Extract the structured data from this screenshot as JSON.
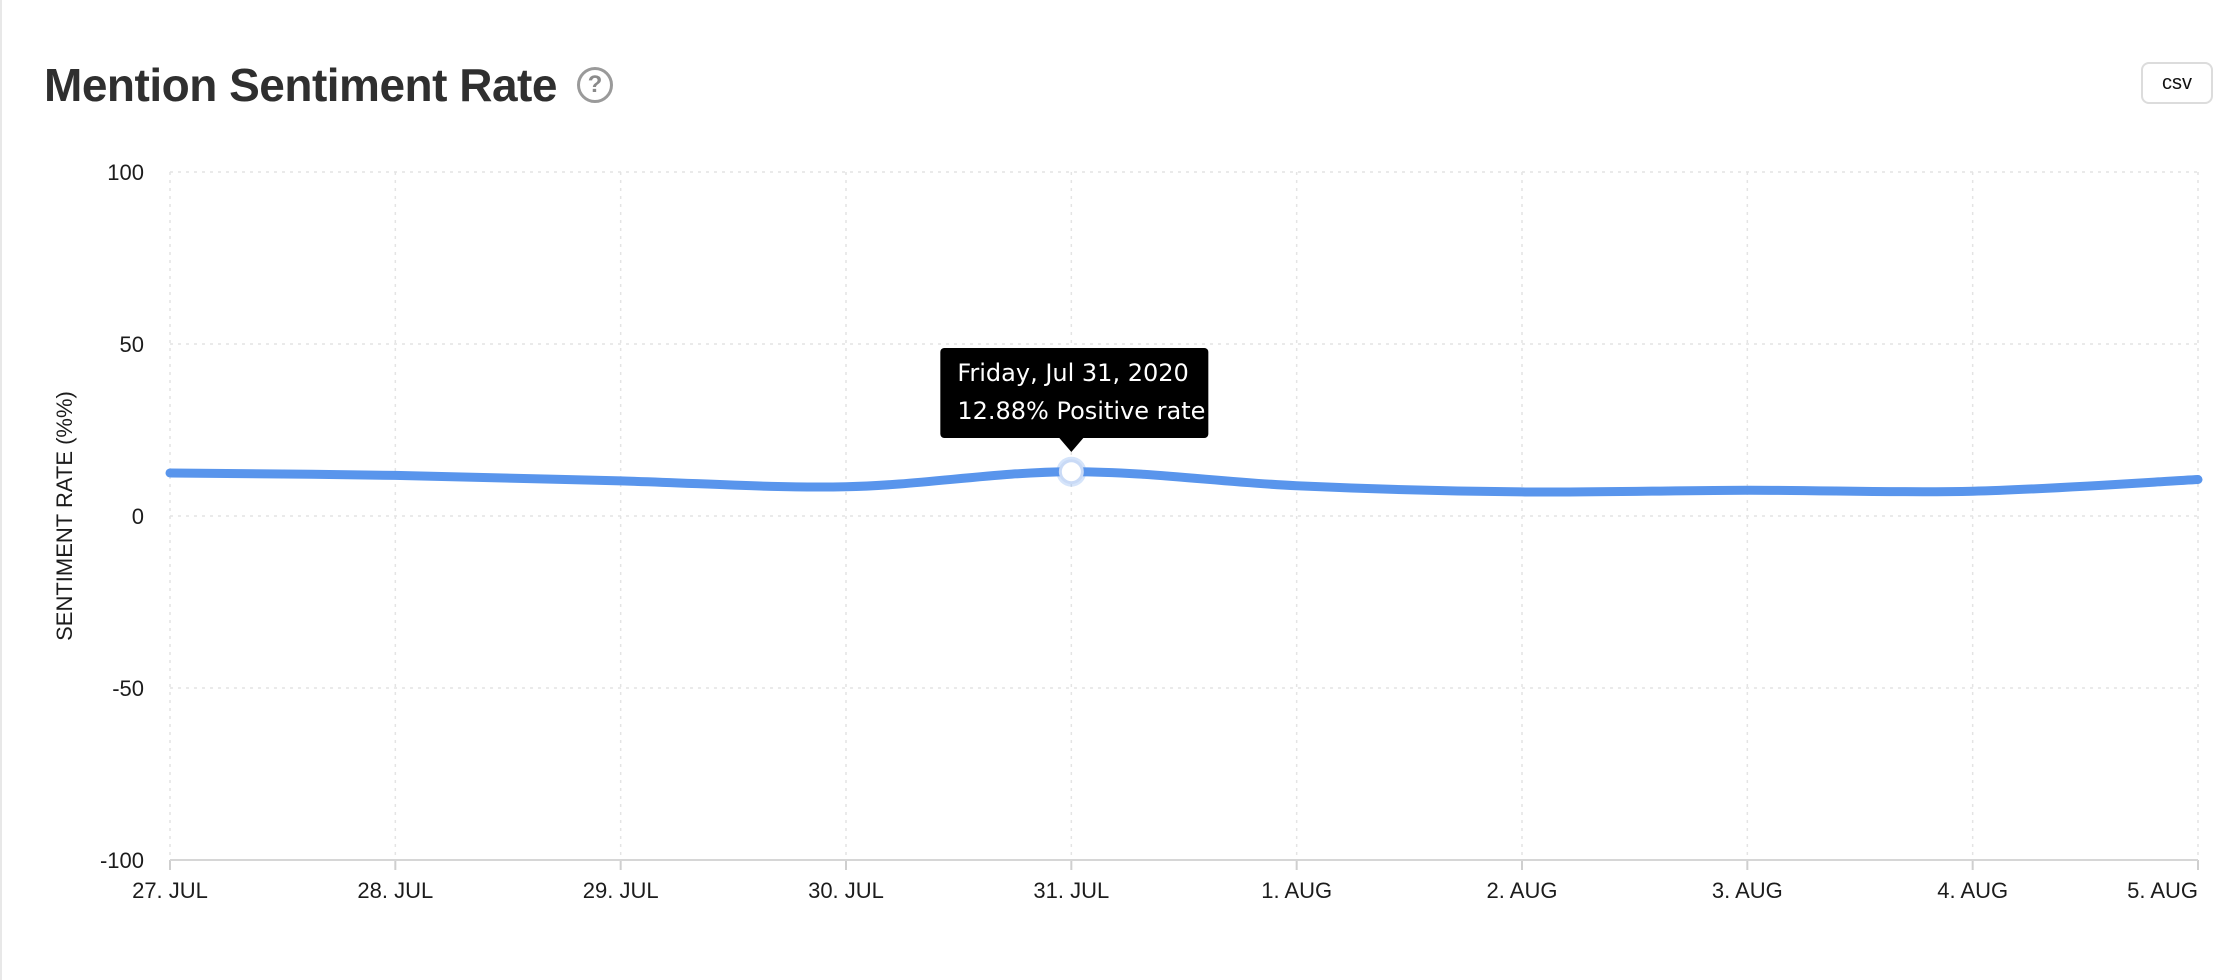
{
  "header": {
    "title": "Mention Sentiment Rate",
    "help_glyph": "?",
    "csv_label": "csv"
  },
  "colors": {
    "line": "#5995ec",
    "tooltip_bg": "#000000",
    "grid": "#e4e4e4"
  },
  "chart_data": {
    "type": "line",
    "title": "Mention Sentiment Rate",
    "ylabel": "SENTIMENT RATE (%%)",
    "xlabel": "",
    "ylim": [
      -100,
      100
    ],
    "yticks": [
      100,
      50,
      0,
      -50,
      -100
    ],
    "categories": [
      "27. JUL",
      "28. JUL",
      "29. JUL",
      "30. JUL",
      "31. JUL",
      "1. AUG",
      "2. AUG",
      "3. AUG",
      "4. AUG",
      "5. AUG"
    ],
    "series": [
      {
        "values": [
          12.5,
          11.8,
          10.2,
          8.5,
          12.88,
          8.8,
          7.0,
          7.5,
          7.2,
          10.6
        ]
      }
    ],
    "grid": true,
    "tooltip": {
      "index": 4,
      "line1": "Friday, Jul 31, 2020",
      "line2": "12.88% Positive rate"
    }
  }
}
